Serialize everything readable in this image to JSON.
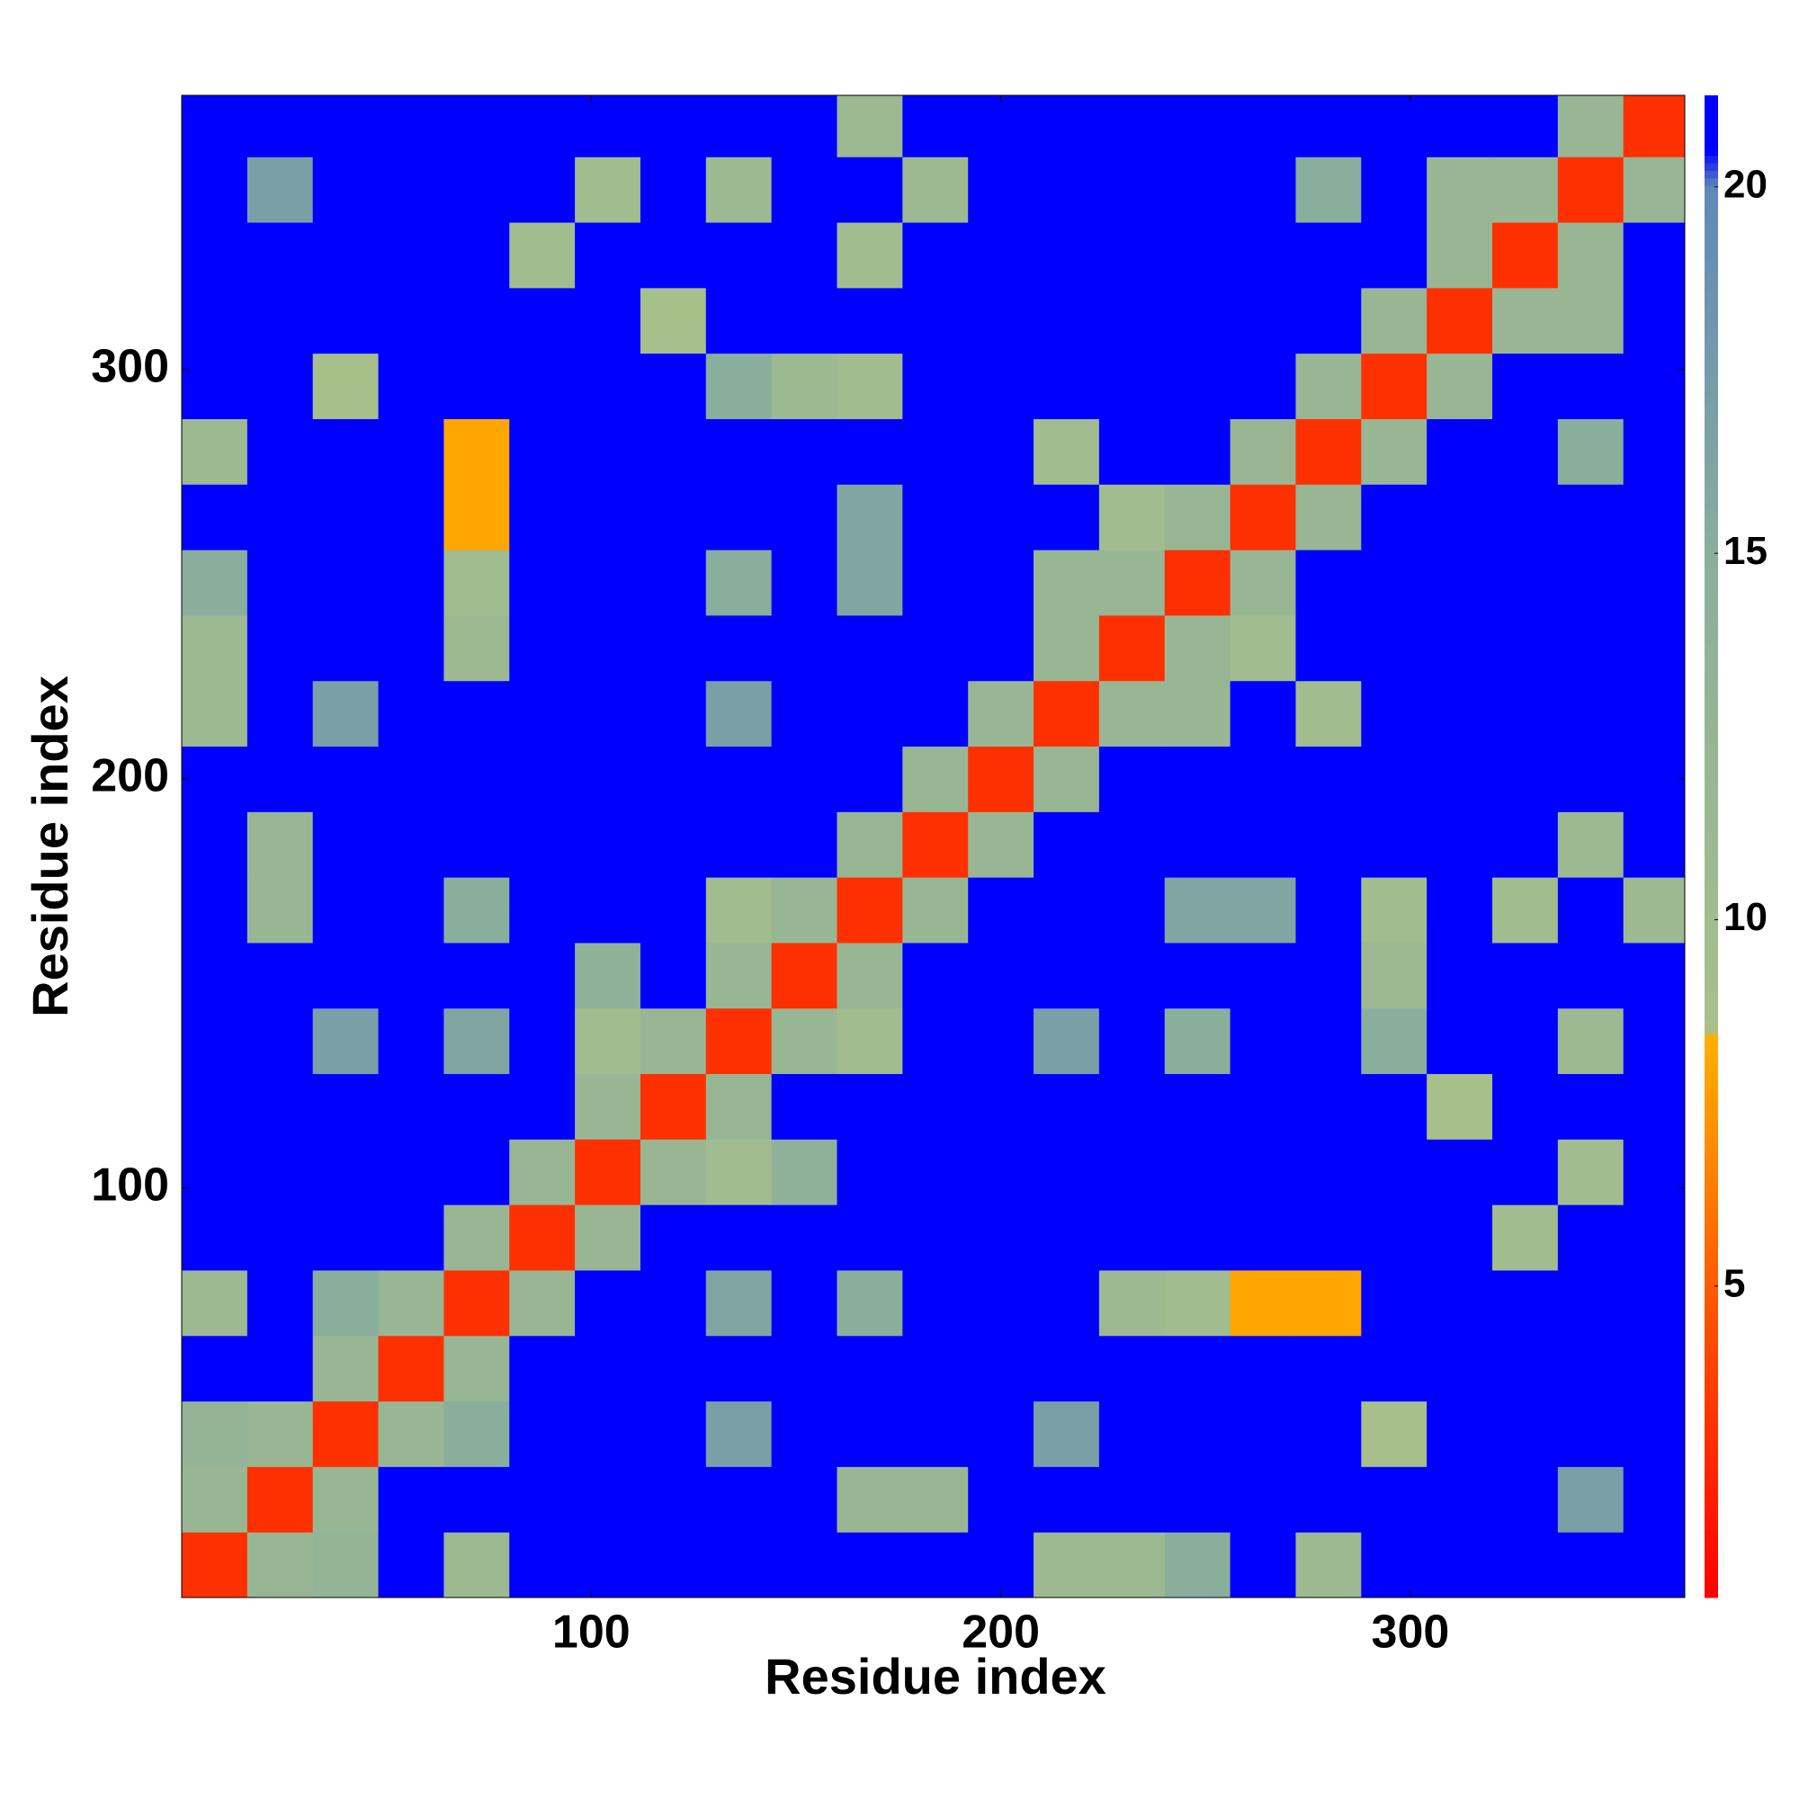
{
  "chart_data": {
    "type": "heatmap",
    "xlabel": "Residue index",
    "ylabel": "Residue index",
    "xlim": [
      0,
      367
    ],
    "ylim": [
      0,
      367
    ],
    "xticks": [
      100,
      200,
      300
    ],
    "yticks": [
      100,
      200,
      300
    ],
    "x_edges": [
      0,
      16,
      32,
      48,
      64,
      80,
      96,
      112,
      128,
      144,
      160,
      176,
      192,
      208,
      224,
      240,
      256,
      272,
      288,
      304,
      320,
      336,
      352,
      367
    ],
    "y_edges": [
      0,
      16,
      32,
      48,
      64,
      80,
      96,
      112,
      128,
      144,
      160,
      176,
      192,
      208,
      224,
      240,
      256,
      272,
      288,
      304,
      320,
      336,
      352,
      367
    ],
    "z": [
      [
        3,
        12,
        13,
        21,
        11,
        21,
        21,
        21,
        21,
        21,
        21,
        21,
        21,
        11,
        11,
        15,
        21,
        11,
        21,
        21,
        21,
        21,
        21
      ],
      [
        12,
        3,
        12,
        21,
        21,
        21,
        21,
        21,
        21,
        21,
        12,
        12,
        21,
        21,
        21,
        21,
        21,
        21,
        21,
        21,
        21,
        17,
        21
      ],
      [
        13,
        12,
        3,
        12,
        15,
        21,
        21,
        21,
        17,
        21,
        21,
        21,
        21,
        17,
        21,
        21,
        21,
        21,
        9,
        21,
        21,
        21,
        21
      ],
      [
        21,
        21,
        12,
        3,
        12,
        21,
        21,
        21,
        21,
        21,
        21,
        21,
        21,
        21,
        21,
        21,
        21,
        21,
        21,
        21,
        21,
        21,
        21
      ],
      [
        11,
        21,
        15,
        12,
        3,
        12,
        21,
        21,
        16,
        21,
        15,
        21,
        21,
        21,
        11,
        10,
        8,
        8,
        21,
        21,
        21,
        21,
        21
      ],
      [
        21,
        21,
        21,
        21,
        12,
        3,
        12,
        21,
        21,
        21,
        21,
        21,
        21,
        21,
        21,
        21,
        21,
        21,
        21,
        21,
        10,
        21,
        21
      ],
      [
        21,
        21,
        21,
        21,
        21,
        12,
        3,
        12,
        10,
        14,
        21,
        21,
        21,
        21,
        21,
        21,
        21,
        21,
        21,
        21,
        21,
        10,
        21
      ],
      [
        21,
        21,
        21,
        21,
        21,
        21,
        12,
        3,
        12,
        21,
        21,
        21,
        21,
        21,
        21,
        21,
        21,
        21,
        21,
        9,
        21,
        21,
        21
      ],
      [
        21,
        21,
        17,
        21,
        16,
        21,
        10,
        12,
        3,
        12,
        10,
        21,
        21,
        17,
        21,
        15,
        21,
        21,
        15,
        21,
        21,
        11,
        21
      ],
      [
        21,
        21,
        21,
        21,
        21,
        21,
        14,
        21,
        12,
        3,
        12,
        21,
        21,
        21,
        21,
        21,
        21,
        21,
        11,
        21,
        21,
        21,
        21
      ],
      [
        21,
        12,
        21,
        21,
        15,
        21,
        21,
        21,
        10,
        12,
        3,
        12,
        21,
        21,
        21,
        16,
        16,
        21,
        10,
        21,
        10,
        21,
        11
      ],
      [
        21,
        12,
        21,
        21,
        21,
        21,
        21,
        21,
        21,
        21,
        12,
        3,
        12,
        21,
        21,
        21,
        21,
        21,
        21,
        21,
        21,
        11,
        21
      ],
      [
        21,
        21,
        21,
        21,
        21,
        21,
        21,
        21,
        21,
        21,
        21,
        12,
        3,
        12,
        21,
        21,
        21,
        21,
        21,
        21,
        21,
        21,
        21
      ],
      [
        11,
        21,
        17,
        21,
        21,
        21,
        21,
        21,
        17,
        21,
        21,
        21,
        12,
        3,
        12,
        12,
        21,
        10,
        21,
        21,
        21,
        21,
        21
      ],
      [
        11,
        21,
        21,
        21,
        11,
        21,
        21,
        21,
        21,
        21,
        21,
        21,
        21,
        12,
        3,
        12,
        10,
        21,
        21,
        21,
        21,
        21,
        21
      ],
      [
        15,
        21,
        21,
        21,
        10,
        21,
        21,
        21,
        15,
        21,
        16,
        21,
        21,
        12,
        12,
        3,
        12,
        21,
        21,
        21,
        21,
        21,
        21
      ],
      [
        21,
        21,
        21,
        21,
        8,
        21,
        21,
        21,
        21,
        21,
        16,
        21,
        21,
        21,
        10,
        12,
        3,
        12,
        21,
        21,
        21,
        21,
        21
      ],
      [
        11,
        21,
        21,
        21,
        8,
        21,
        21,
        21,
        21,
        21,
        21,
        21,
        21,
        10,
        21,
        21,
        12,
        3,
        12,
        21,
        21,
        15,
        21
      ],
      [
        21,
        21,
        9,
        21,
        21,
        21,
        21,
        21,
        15,
        11,
        10,
        21,
        21,
        21,
        21,
        21,
        21,
        12,
        3,
        12,
        21,
        21,
        21
      ],
      [
        21,
        21,
        21,
        21,
        21,
        21,
        21,
        9,
        21,
        21,
        21,
        21,
        21,
        21,
        21,
        21,
        21,
        21,
        12,
        3,
        12,
        12,
        21
      ],
      [
        21,
        21,
        21,
        21,
        21,
        10,
        21,
        21,
        21,
        21,
        10,
        21,
        21,
        21,
        21,
        21,
        21,
        21,
        21,
        12,
        3,
        12,
        21
      ],
      [
        21,
        17,
        21,
        21,
        21,
        21,
        10,
        21,
        11,
        21,
        21,
        11,
        21,
        21,
        21,
        21,
        21,
        15,
        21,
        12,
        12,
        3,
        12
      ],
      [
        21,
        21,
        21,
        21,
        21,
        21,
        21,
        21,
        21,
        21,
        11,
        21,
        21,
        21,
        21,
        21,
        21,
        21,
        21,
        21,
        21,
        12,
        3
      ]
    ],
    "clim": [
      0.75,
      21.25
    ],
    "cticks": [
      5,
      10,
      15,
      20
    ],
    "colorscale": [
      {
        "value": 0.75,
        "color": "#ff0000"
      },
      {
        "value": 5,
        "color": "#ff5a00"
      },
      {
        "value": 8.4,
        "color": "#ffb000"
      },
      {
        "value": 8.5,
        "color": "#a8c08a"
      },
      {
        "value": 15,
        "color": "#8aae9c"
      },
      {
        "value": 20,
        "color": "#5f88b8"
      },
      {
        "value": 20.5,
        "color": "#0000ff"
      },
      {
        "value": 21.25,
        "color": "#0000ff"
      }
    ]
  }
}
